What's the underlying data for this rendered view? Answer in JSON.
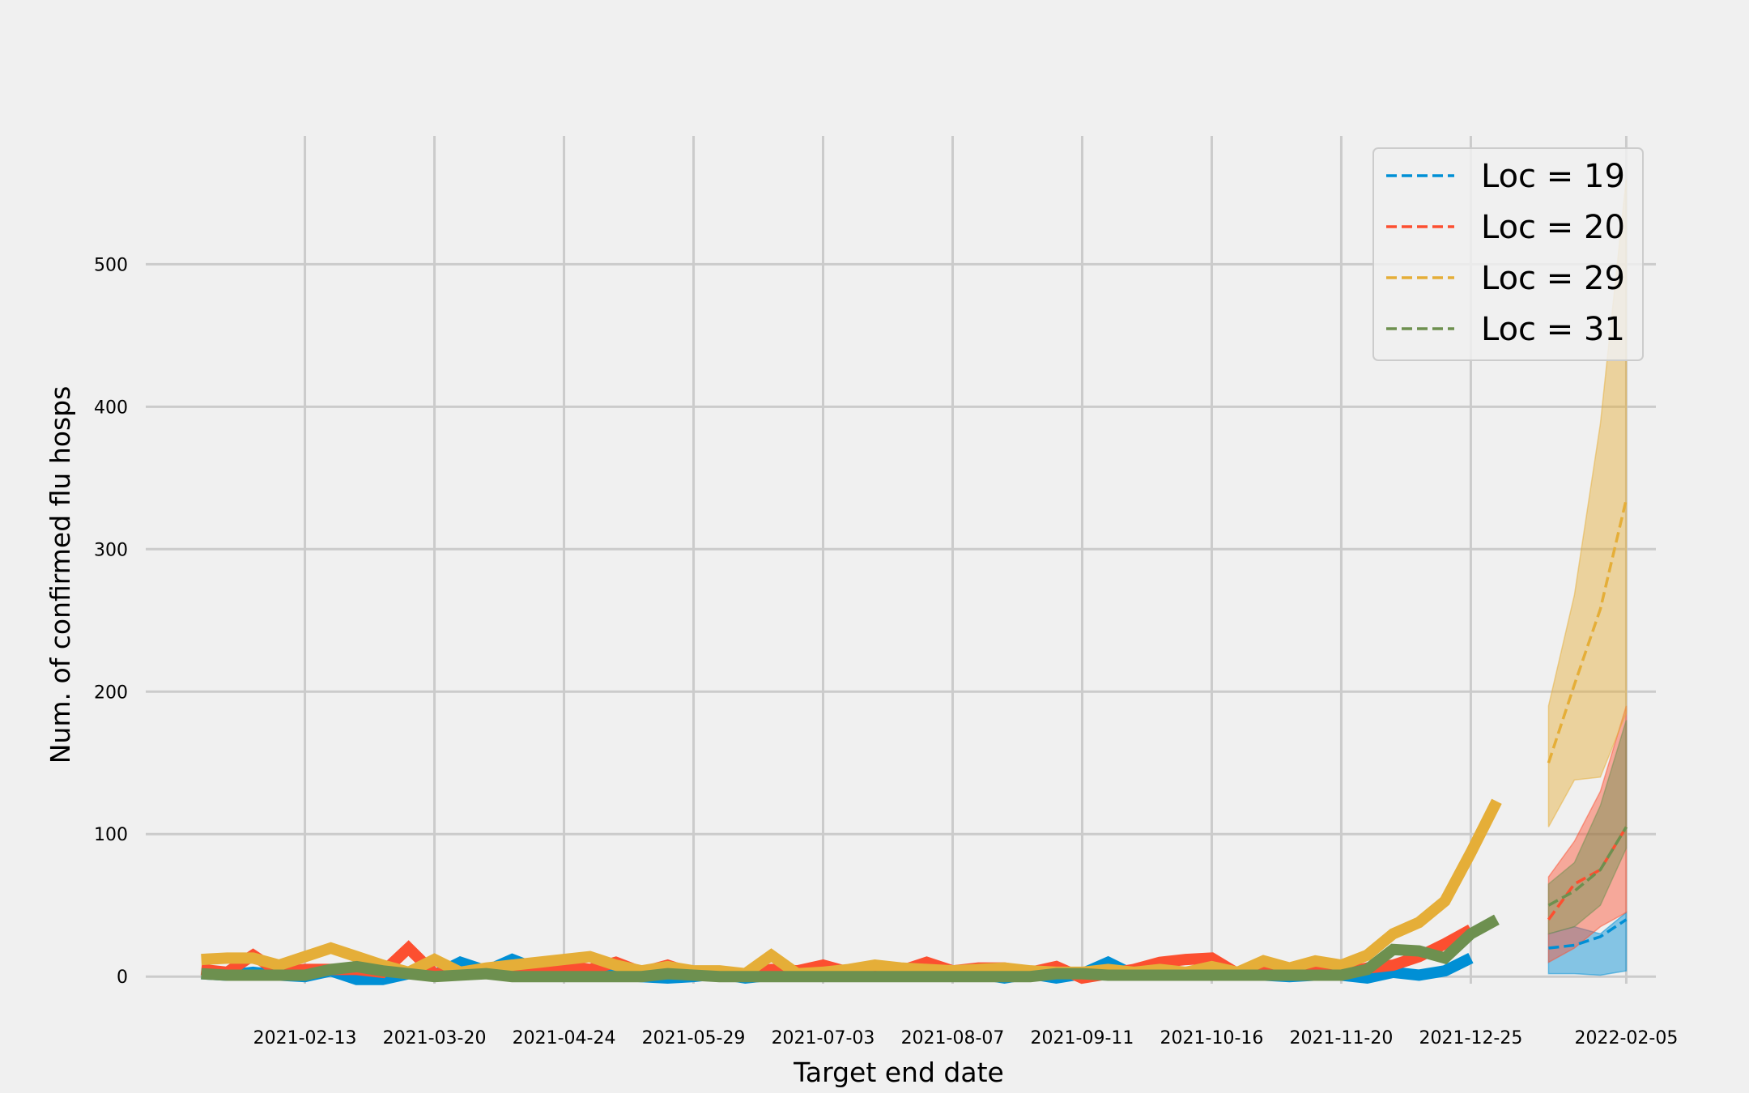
{
  "chart_data": {
    "type": "line",
    "title": "",
    "xlabel": "Target end date",
    "ylabel": "Num. of confirmed flu hosps",
    "x_tick_labels": [
      "2021-02-13",
      "2021-03-20",
      "2021-04-24",
      "2021-05-29",
      "2021-07-03",
      "2021-08-07",
      "2021-09-11",
      "2021-10-16",
      "2021-11-20",
      "2021-12-25",
      "2022-02-05"
    ],
    "y_ticks": [
      0,
      100,
      200,
      300,
      400,
      500
    ],
    "ylim": [
      -5,
      590
    ],
    "xlim": [
      "2021-01-01",
      "2022-02-13"
    ],
    "grid": true,
    "legend_position": "top-right",
    "colors": {
      "19": "#008fd5",
      "20": "#fc4f30",
      "29": "#e5ae38",
      "31": "#6d904f"
    },
    "observed_dates": [
      "2021-01-16",
      "2021-01-23",
      "2021-01-30",
      "2021-02-06",
      "2021-02-13",
      "2021-02-20",
      "2021-02-27",
      "2021-03-06",
      "2021-03-13",
      "2021-03-20",
      "2021-03-27",
      "2021-04-03",
      "2021-04-10",
      "2021-04-17",
      "2021-04-24",
      "2021-05-01",
      "2021-05-08",
      "2021-05-15",
      "2021-05-22",
      "2021-05-29",
      "2021-06-05",
      "2021-06-12",
      "2021-06-19",
      "2021-06-26",
      "2021-07-03",
      "2021-07-10",
      "2021-07-17",
      "2021-07-24",
      "2021-07-31",
      "2021-08-07",
      "2021-08-14",
      "2021-08-21",
      "2021-08-28",
      "2021-09-04",
      "2021-09-11",
      "2021-09-18",
      "2021-09-25",
      "2021-10-02",
      "2021-10-09",
      "2021-10-16",
      "2021-10-23",
      "2021-10-30",
      "2021-11-06",
      "2021-11-13",
      "2021-11-20",
      "2021-11-27",
      "2021-12-04",
      "2021-12-11",
      "2021-12-18",
      "2021-12-25",
      "2022-01-01"
    ],
    "forecast_dates": [
      "2022-01-15",
      "2022-01-22",
      "2022-01-29",
      "2022-02-05"
    ],
    "series": [
      {
        "name": "Loc = 19",
        "observed": [
          2,
          1,
          3,
          1,
          0,
          4,
          -2,
          -2,
          2,
          1,
          10,
          4,
          12,
          5,
          3,
          1,
          1,
          0,
          -1,
          0,
          2,
          -1,
          1,
          1,
          1,
          2,
          1,
          1,
          2,
          1,
          2,
          -1,
          2,
          -1,
          2,
          10,
          1,
          1,
          1,
          1,
          1,
          1,
          0,
          1,
          1,
          -1,
          3,
          1,
          4,
          13,
          null
        ],
        "forecast_median": [
          20,
          22,
          28,
          40
        ],
        "forecast_lower": [
          2,
          2,
          1,
          4
        ],
        "forecast_upper": [
          30,
          35,
          30,
          45
        ]
      },
      {
        "name": "Loc = 20",
        "observed": [
          5,
          3,
          15,
          3,
          5,
          5,
          5,
          3,
          20,
          2,
          3,
          5,
          8,
          3,
          8,
          5,
          10,
          3,
          8,
          2,
          1,
          2,
          5,
          4,
          8,
          3,
          5,
          4,
          10,
          4,
          6,
          6,
          3,
          7,
          -1,
          2,
          5,
          10,
          12,
          13,
          2,
          5,
          5,
          4,
          2,
          6,
          8,
          14,
          23,
          33,
          null
        ],
        "forecast_median": [
          40,
          65,
          75,
          105
        ],
        "forecast_lower": [
          10,
          20,
          35,
          45
        ],
        "forecast_upper": [
          70,
          95,
          130,
          190
        ]
      },
      {
        "name": "Loc = 29",
        "observed": [
          12,
          13,
          13,
          8,
          14,
          20,
          14,
          8,
          3,
          12,
          3,
          6,
          8,
          10,
          12,
          14,
          8,
          4,
          7,
          4,
          4,
          2,
          15,
          2,
          3,
          5,
          8,
          6,
          5,
          4,
          5,
          6,
          4,
          3,
          3,
          5,
          3,
          5,
          3,
          7,
          3,
          11,
          6,
          11,
          8,
          15,
          30,
          38,
          53,
          87,
          123
        ],
        "forecast_median": [
          150,
          205,
          258,
          335
        ],
        "forecast_lower": [
          105,
          138,
          140,
          185
        ],
        "forecast_upper": [
          190,
          268,
          388,
          560
        ]
      },
      {
        "name": "Loc = 31",
        "observed": [
          2,
          1,
          1,
          1,
          1,
          5,
          7,
          4,
          2,
          0,
          1,
          2,
          0,
          0,
          0,
          0,
          0,
          0,
          2,
          1,
          0,
          0,
          0,
          0,
          0,
          0,
          0,
          0,
          0,
          0,
          0,
          0,
          0,
          2,
          2,
          1,
          1,
          1,
          1,
          1,
          1,
          1,
          1,
          1,
          1,
          5,
          19,
          18,
          13,
          30,
          40
        ],
        "forecast_median": [
          50,
          60,
          75,
          105
        ],
        "forecast_lower": [
          30,
          35,
          50,
          90
        ],
        "forecast_upper": [
          65,
          80,
          120,
          180
        ]
      }
    ]
  }
}
